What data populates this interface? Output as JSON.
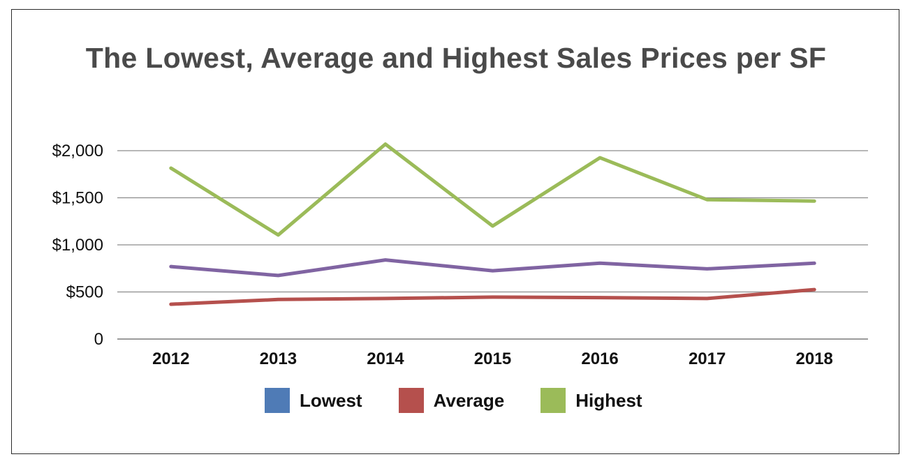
{
  "chart_data": {
    "type": "line",
    "title": "The Lowest, Average and Highest Sales Prices per SF",
    "xlabel": "",
    "ylabel": "",
    "categories": [
      "2012",
      "2013",
      "2014",
      "2015",
      "2016",
      "2017",
      "2018"
    ],
    "y_ticks": [
      "0",
      "$500",
      "$1,000",
      "$1,500",
      "$2,000"
    ],
    "y_tick_values": [
      0,
      500,
      1000,
      1500,
      2000
    ],
    "ylim": [
      0,
      2000
    ],
    "grid": true,
    "legend_position": "bottom",
    "legend": [
      {
        "label": "Lowest",
        "color": "#4f7bb6"
      },
      {
        "label": "Average",
        "color": "#b5504d"
      },
      {
        "label": "Highest",
        "color": "#9bbb59"
      }
    ],
    "series": [
      {
        "name": "Lowest",
        "color": "#8064a2",
        "values": [
          770,
          675,
          840,
          725,
          805,
          745,
          805
        ]
      },
      {
        "name": "Average",
        "color": "#b5504d",
        "values": [
          370,
          420,
          430,
          445,
          440,
          430,
          525
        ]
      },
      {
        "name": "Highest",
        "color": "#9bbb59",
        "values": [
          1815,
          1105,
          2070,
          1200,
          1925,
          1480,
          1465
        ]
      }
    ]
  }
}
